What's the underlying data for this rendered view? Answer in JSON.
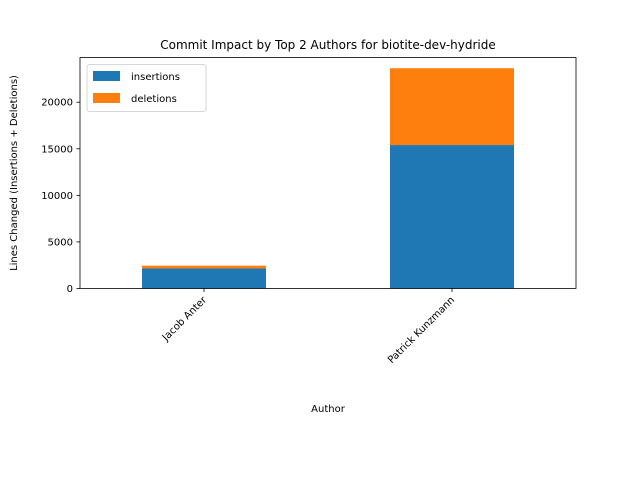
{
  "chart_data": {
    "type": "bar",
    "stacked": true,
    "title": "Commit Impact by Top 2 Authors for biotite-dev-hydride",
    "xlabel": "Author",
    "ylabel": "Lines Changed (Insertions + Deletions)",
    "categories": [
      "Jacob Anter",
      "Patrick Kunzmann"
    ],
    "series": [
      {
        "name": "insertions",
        "values": [
          2150,
          15400
        ],
        "color": "#1f77b4"
      },
      {
        "name": "deletions",
        "values": [
          300,
          8250
        ],
        "color": "#ff7f0e"
      }
    ],
    "ylim": [
      0,
      24800
    ],
    "yticks": [
      0,
      5000,
      10000,
      15000,
      20000
    ],
    "grid": false,
    "legend_position": "top-left"
  }
}
